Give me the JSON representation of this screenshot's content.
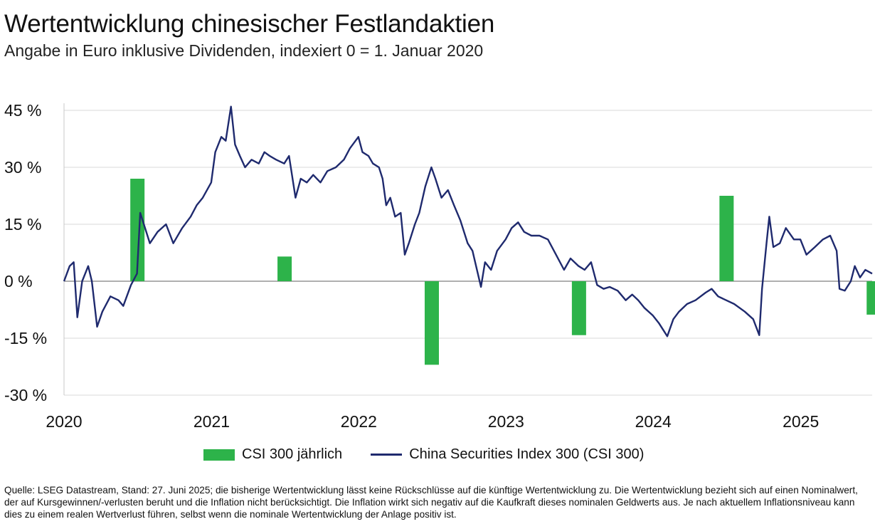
{
  "header": {
    "title": "Wertentwicklung chinesischer Festlandaktien",
    "subtitle": "Angabe in Euro inklusive Dividenden, indexiert 0 = 1. Januar 2020"
  },
  "legend": {
    "bars_label": "CSI 300 jährlich",
    "line_label": "China Securities Index 300 (CSI 300)"
  },
  "footnote": "Quelle: LSEG Datastream, Stand: 27. Juni 2025; die bisherige Wertentwicklung lässt keine Rückschlüsse auf die künftige Wertentwicklung zu. Die Wertentwicklung bezieht sich auf einen Nominalwert, der auf Kursgewinnen/-verlusten beruht und die Inflation nicht berücksichtigt. Die Inflation wirkt sich negativ auf die Kaufkraft dieses nominalen Geldwerts aus. Je nach aktuellem Inflationsniveau kann dies zu einem realen Wertverlust führen, selbst wenn die nominale Wertentwicklung der Anlage positiv ist.",
  "colors": {
    "bar": "#2db34a",
    "line": "#1f2a6e",
    "grid": "#d9d9d9",
    "zero": "#b0b0b0"
  },
  "chart_data": {
    "type": "bar+line",
    "x_ticks": [
      "2020",
      "2021",
      "2022",
      "2023",
      "2024",
      "2025"
    ],
    "y_ticks": [
      "45 %",
      "30 %",
      "15 %",
      "0 %",
      "-15 %",
      "-30 %"
    ],
    "ylim": [
      -30,
      45
    ],
    "xlim": [
      "2020-01-01",
      "2025-06-27"
    ],
    "grid": "horizontal",
    "legend_position": "bottom",
    "bars": {
      "name": "CSI 300 jährlich",
      "categories": [
        "2020",
        "2021",
        "2022",
        "2023",
        "2024",
        "2025"
      ],
      "values": [
        27.0,
        6.5,
        -22.0,
        -14.2,
        22.5,
        -8.8
      ]
    },
    "line": {
      "name": "China Securities Index 300 (CSI 300)",
      "points": [
        [
          "2020-01-01",
          0
        ],
        [
          "2020-01-15",
          4
        ],
        [
          "2020-01-25",
          5
        ],
        [
          "2020-02-03",
          -9.5
        ],
        [
          "2020-02-15",
          0
        ],
        [
          "2020-03-01",
          4
        ],
        [
          "2020-03-10",
          0
        ],
        [
          "2020-03-23",
          -12
        ],
        [
          "2020-04-05",
          -8
        ],
        [
          "2020-04-25",
          -4
        ],
        [
          "2020-05-15",
          -5
        ],
        [
          "2020-05-27",
          -6.5
        ],
        [
          "2020-06-15",
          -1
        ],
        [
          "2020-06-30",
          2
        ],
        [
          "2020-07-08",
          18
        ],
        [
          "2020-07-20",
          14
        ],
        [
          "2020-08-01",
          10
        ],
        [
          "2020-08-20",
          13
        ],
        [
          "2020-09-10",
          15
        ],
        [
          "2020-09-28",
          10
        ],
        [
          "2020-10-20",
          14
        ],
        [
          "2020-11-10",
          17
        ],
        [
          "2020-11-25",
          20
        ],
        [
          "2020-12-10",
          22
        ],
        [
          "2020-12-31",
          26
        ],
        [
          "2021-01-10",
          34
        ],
        [
          "2021-01-25",
          38
        ],
        [
          "2021-02-05",
          37
        ],
        [
          "2021-02-18",
          46
        ],
        [
          "2021-02-28",
          36
        ],
        [
          "2021-03-12",
          33
        ],
        [
          "2021-03-25",
          30
        ],
        [
          "2021-04-10",
          32
        ],
        [
          "2021-04-28",
          31
        ],
        [
          "2021-05-12",
          34
        ],
        [
          "2021-05-25",
          33
        ],
        [
          "2021-06-10",
          32
        ],
        [
          "2021-06-30",
          31
        ],
        [
          "2021-07-12",
          33
        ],
        [
          "2021-07-28",
          22
        ],
        [
          "2021-08-10",
          27
        ],
        [
          "2021-08-25",
          26
        ],
        [
          "2021-09-10",
          28
        ],
        [
          "2021-09-28",
          26
        ],
        [
          "2021-10-15",
          29
        ],
        [
          "2021-11-05",
          30
        ],
        [
          "2021-11-25",
          32
        ],
        [
          "2021-12-10",
          35
        ],
        [
          "2021-12-31",
          38
        ],
        [
          "2022-01-10",
          34
        ],
        [
          "2022-01-25",
          33
        ],
        [
          "2022-02-05",
          31
        ],
        [
          "2022-02-20",
          30
        ],
        [
          "2022-03-01",
          27
        ],
        [
          "2022-03-10",
          20
        ],
        [
          "2022-03-20",
          22
        ],
        [
          "2022-04-01",
          17
        ],
        [
          "2022-04-15",
          18
        ],
        [
          "2022-04-25",
          7
        ],
        [
          "2022-05-05",
          10
        ],
        [
          "2022-05-20",
          15
        ],
        [
          "2022-05-31",
          18
        ],
        [
          "2022-06-15",
          25
        ],
        [
          "2022-06-30",
          30
        ],
        [
          "2022-07-10",
          27
        ],
        [
          "2022-07-25",
          22
        ],
        [
          "2022-08-10",
          24
        ],
        [
          "2022-08-25",
          20
        ],
        [
          "2022-09-10",
          16
        ],
        [
          "2022-09-28",
          10
        ],
        [
          "2022-10-10",
          8
        ],
        [
          "2022-10-31",
          -1.5
        ],
        [
          "2022-11-10",
          5
        ],
        [
          "2022-11-25",
          3
        ],
        [
          "2022-12-10",
          8
        ],
        [
          "2022-12-31",
          11
        ],
        [
          "2023-01-15",
          14
        ],
        [
          "2023-01-31",
          15.5
        ],
        [
          "2023-02-15",
          13
        ],
        [
          "2023-03-05",
          12
        ],
        [
          "2023-03-25",
          12
        ],
        [
          "2023-04-15",
          11
        ],
        [
          "2023-05-05",
          7
        ],
        [
          "2023-05-25",
          3
        ],
        [
          "2023-06-10",
          6
        ],
        [
          "2023-06-30",
          4
        ],
        [
          "2023-07-15",
          3
        ],
        [
          "2023-07-31",
          5
        ],
        [
          "2023-08-15",
          -1
        ],
        [
          "2023-08-31",
          -2
        ],
        [
          "2023-09-15",
          -1.5
        ],
        [
          "2023-10-05",
          -2.5
        ],
        [
          "2023-10-25",
          -5
        ],
        [
          "2023-11-10",
          -3.5
        ],
        [
          "2023-11-25",
          -5
        ],
        [
          "2023-12-10",
          -7
        ],
        [
          "2023-12-31",
          -9
        ],
        [
          "2024-01-15",
          -11
        ],
        [
          "2024-02-05",
          -14.5
        ],
        [
          "2024-02-20",
          -10
        ],
        [
          "2024-03-05",
          -8
        ],
        [
          "2024-03-25",
          -6
        ],
        [
          "2024-04-15",
          -5
        ],
        [
          "2024-05-10",
          -3
        ],
        [
          "2024-05-25",
          -2
        ],
        [
          "2024-06-10",
          -4
        ],
        [
          "2024-06-30",
          -5
        ],
        [
          "2024-07-20",
          -6
        ],
        [
          "2024-08-15",
          -8
        ],
        [
          "2024-09-05",
          -10
        ],
        [
          "2024-09-20",
          -14.2
        ],
        [
          "2024-09-27",
          -2
        ],
        [
          "2024-10-08",
          10
        ],
        [
          "2024-10-15",
          17
        ],
        [
          "2024-10-25",
          9
        ],
        [
          "2024-11-10",
          10
        ],
        [
          "2024-11-25",
          14
        ],
        [
          "2024-12-15",
          11
        ],
        [
          "2024-12-31",
          11
        ],
        [
          "2025-01-15",
          7
        ],
        [
          "2025-02-05",
          9
        ],
        [
          "2025-02-25",
          11
        ],
        [
          "2025-03-15",
          12
        ],
        [
          "2025-03-31",
          8
        ],
        [
          "2025-04-07",
          -2
        ],
        [
          "2025-04-20",
          -2.5
        ],
        [
          "2025-05-05",
          0
        ],
        [
          "2025-05-15",
          4
        ],
        [
          "2025-05-28",
          1
        ],
        [
          "2025-06-10",
          3
        ],
        [
          "2025-06-27",
          2
        ]
      ]
    }
  }
}
